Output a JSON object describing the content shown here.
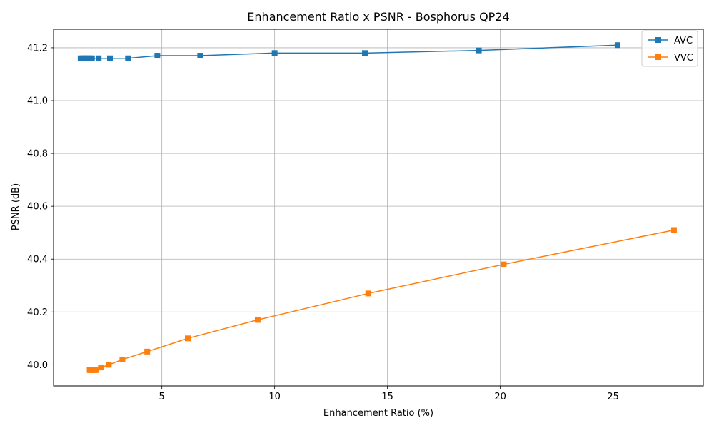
{
  "chart_data": {
    "type": "line",
    "title": "Enhancement Ratio x PSNR - Bosphorus QP24",
    "xlabel": "Enhancement Ratio (%)",
    "ylabel": "PSNR (dB)",
    "xlim": [
      0.2,
      29.0
    ],
    "ylim": [
      39.92,
      41.27
    ],
    "xticks": [
      5,
      10,
      15,
      20,
      25
    ],
    "xtick_labels": [
      "5",
      "10",
      "15",
      "20",
      "25"
    ],
    "yticks": [
      40.0,
      40.2,
      40.4,
      40.6,
      40.8,
      41.0,
      41.2
    ],
    "ytick_labels": [
      "40.0",
      "40.2",
      "40.4",
      "40.6",
      "40.8",
      "41.0",
      "41.2"
    ],
    "grid": true,
    "legend_position": "top-right",
    "marker": "square",
    "series": [
      {
        "name": "AVC",
        "color": "#1f77b4",
        "x": [
          1.4,
          1.5,
          1.6,
          1.7,
          1.8,
          1.9,
          2.2,
          2.7,
          3.5,
          4.8,
          6.7,
          10.0,
          14.0,
          19.05,
          25.2
        ],
        "y": [
          41.16,
          41.16,
          41.16,
          41.16,
          41.16,
          41.16,
          41.16,
          41.16,
          41.16,
          41.17,
          41.17,
          41.18,
          41.18,
          41.19,
          41.21
        ]
      },
      {
        "name": "VVC",
        "color": "#ff7f0e",
        "x": [
          1.8,
          1.85,
          1.9,
          2.0,
          2.1,
          2.3,
          2.65,
          3.25,
          4.35,
          6.15,
          9.25,
          14.15,
          20.15,
          27.7
        ],
        "y": [
          39.98,
          39.98,
          39.98,
          39.98,
          39.98,
          39.99,
          40.0,
          40.02,
          40.05,
          40.1,
          40.17,
          40.27,
          40.38,
          40.51
        ]
      }
    ]
  }
}
